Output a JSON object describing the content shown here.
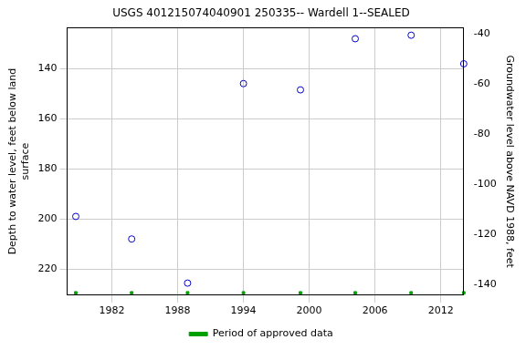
{
  "chart_data": {
    "type": "scatter",
    "title": "USGS 401215074040901 250335-- Wardell 1--SEALED",
    "y_label": [
      "Depth to water level, feet below land",
      "surface"
    ],
    "y2_label": "Groundwater level above NAVD 1988, feet",
    "x": [
      1978.7,
      1983.8,
      1988.9,
      1994.0,
      1999.2,
      2004.2,
      2009.3,
      2014.1
    ],
    "series": [
      {
        "color": "#0000cc",
        "marker": "circle",
        "values": [
          199,
          208,
          225.6,
          146,
          148.5,
          128.1,
          126.7,
          138.1
        ]
      },
      {
        "name": "Period of approved data",
        "color": "#00a000",
        "marker": "square",
        "values": [
          229.5,
          229.5,
          229.5,
          229.5,
          229.5,
          229.5,
          229.5,
          229.5
        ]
      }
    ],
    "xlim": [
      1977.9,
      2014.1
    ],
    "xticks": [
      1982,
      1988,
      1994,
      2000,
      2006,
      2012
    ],
    "ylim": [
      230.4,
      123.7
    ],
    "yticks": [
      140,
      160,
      180,
      200,
      220
    ],
    "y2lim": [
      -144.1,
      -37.4
    ],
    "y2ticks": [
      -140,
      -120,
      -100,
      -80,
      -60,
      -40
    ],
    "grid": true,
    "legend": "bottom"
  }
}
